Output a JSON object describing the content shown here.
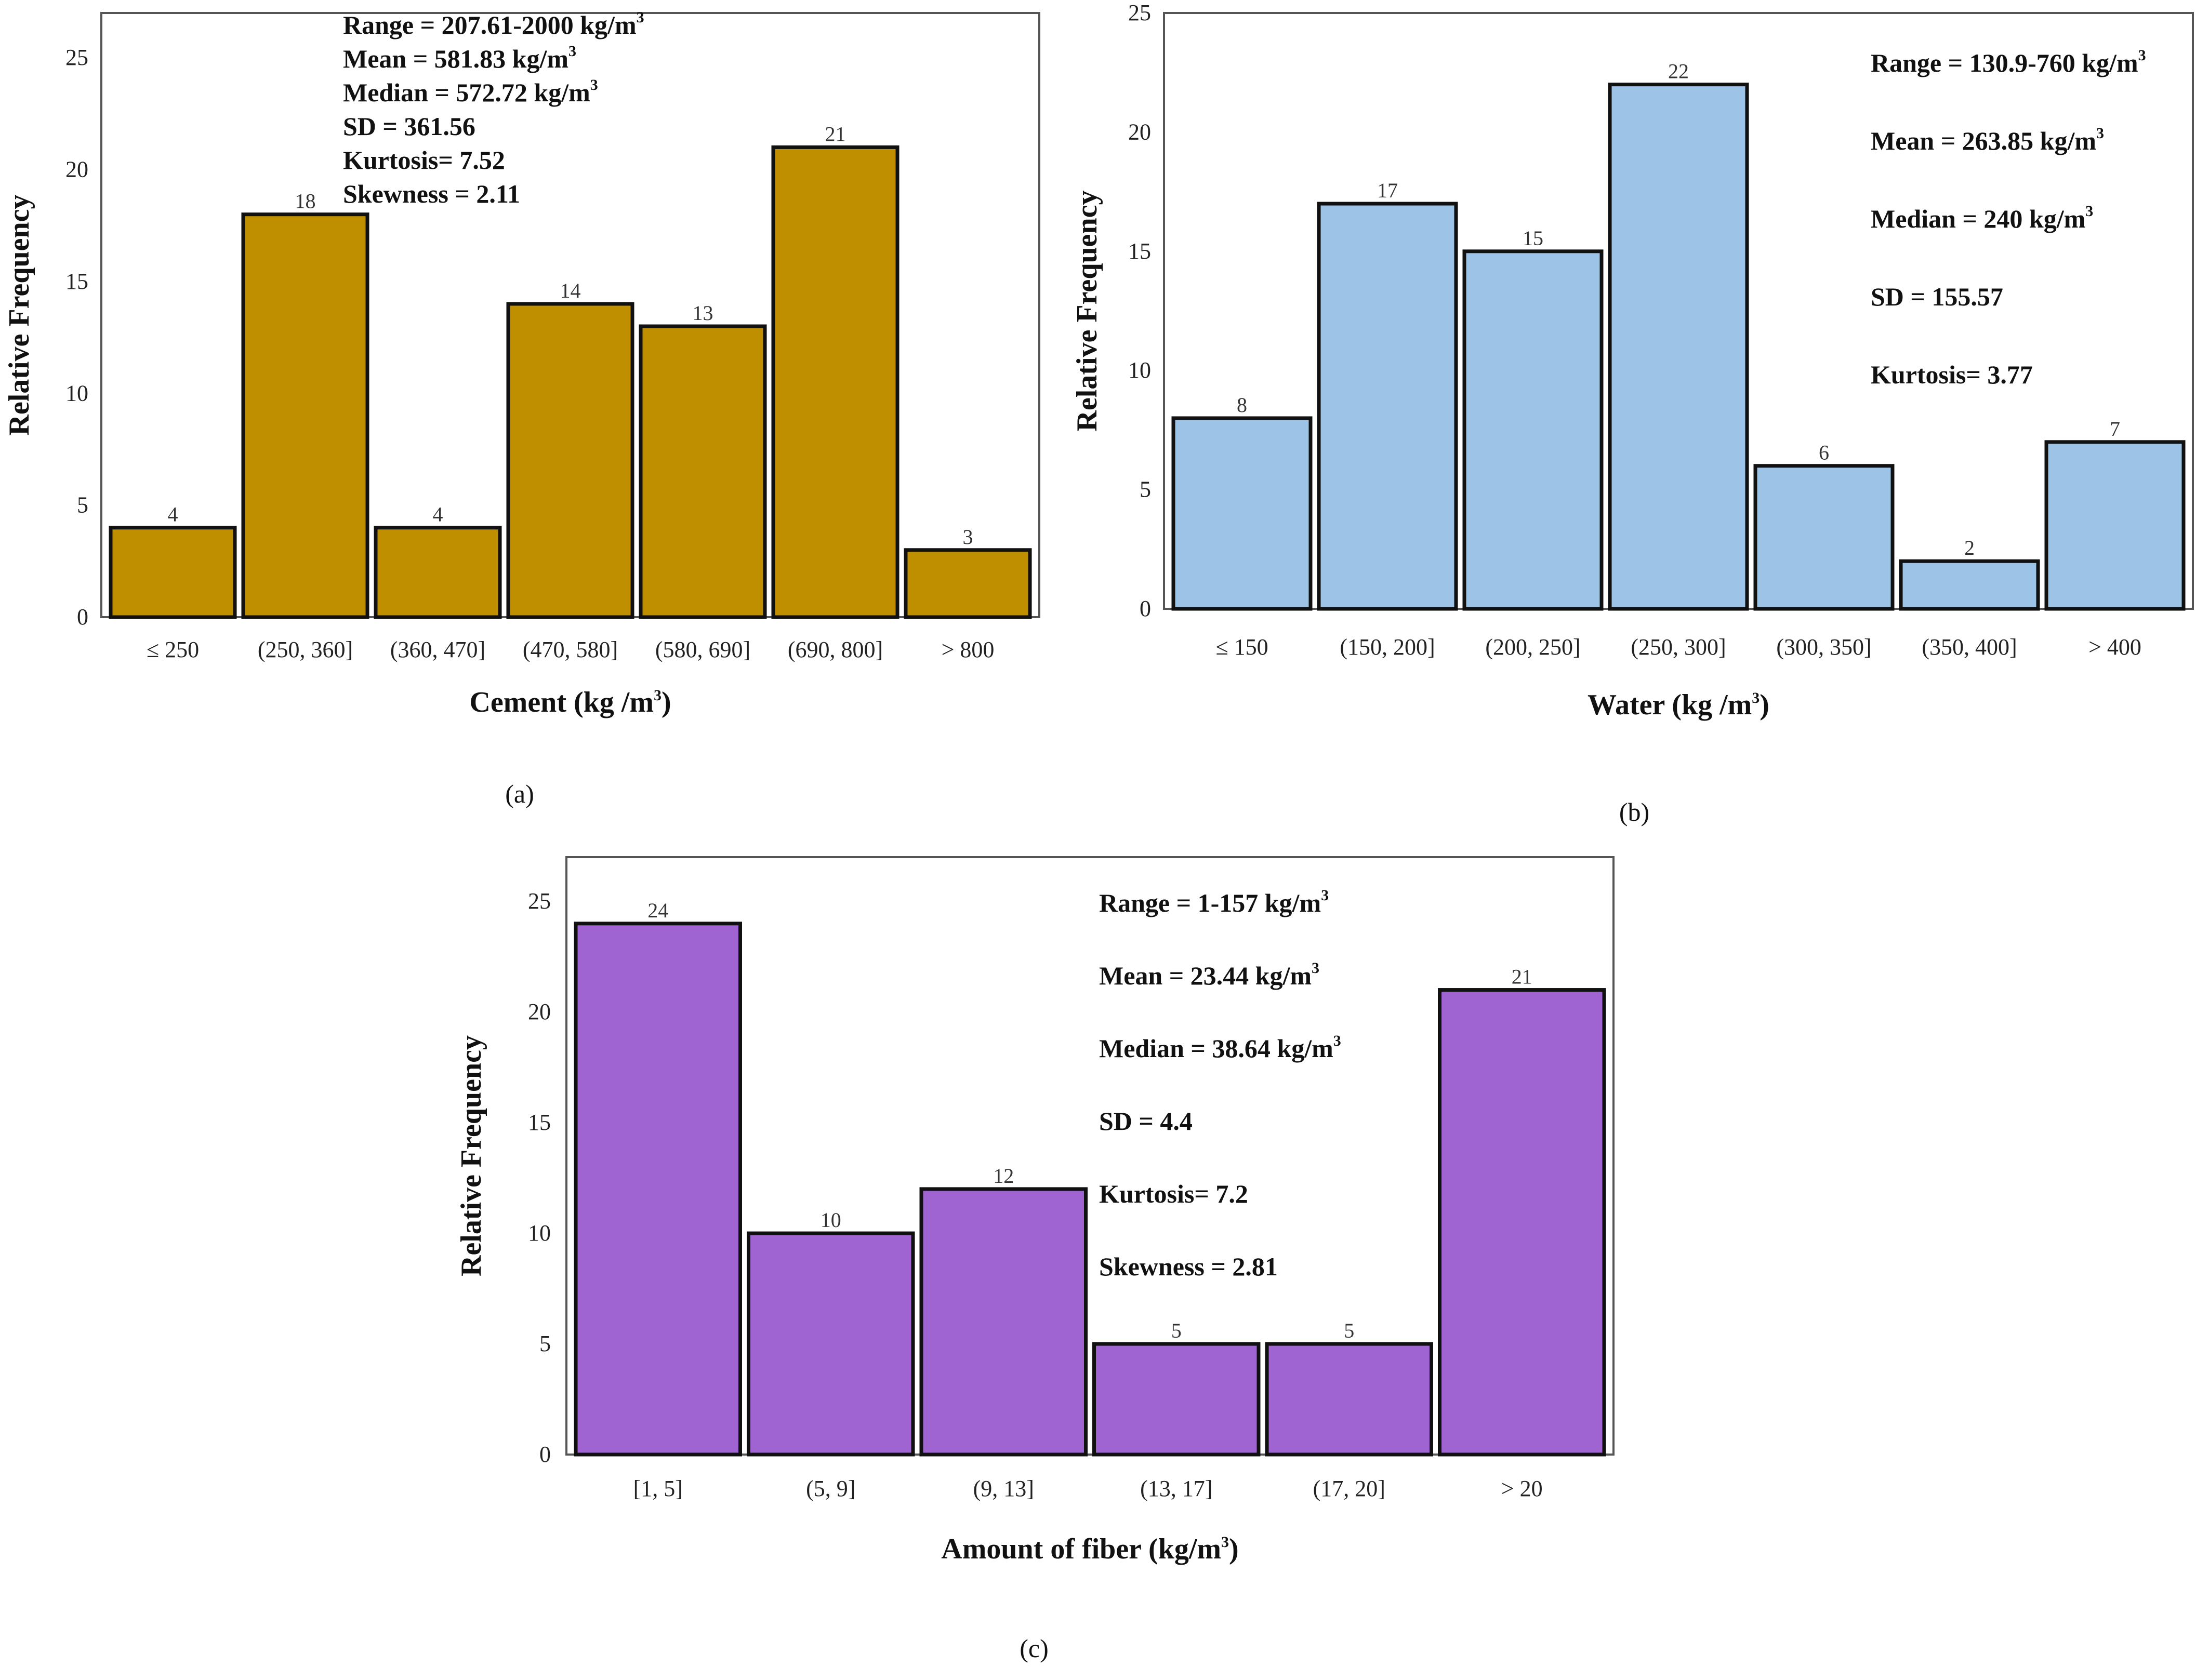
{
  "chart_data": [
    {
      "type": "bar",
      "panel": "(a)",
      "color": "#BF8F00",
      "categories": [
        "≤ 250",
        "(250, 360]",
        "(360, 470]",
        "(470, 580]",
        "(580, 690]",
        "(690, 800]",
        "> 800"
      ],
      "values": [
        4,
        18,
        4,
        14,
        13,
        21,
        3
      ],
      "xlabel": "Cement (kg /m",
      "xlabel_sup": "3",
      "xlabel_end": ")",
      "ylabel": "Relative Frequency",
      "ylim": [
        0,
        27
      ],
      "yticks": [
        0,
        5,
        10,
        15,
        20,
        25
      ],
      "stats": [
        {
          "text": "Range = 207.61-2000 kg/m",
          "sup": "3"
        },
        {
          "text": "Mean = 581.83 kg/m",
          "sup": "3"
        },
        {
          "text": "Median = 572.72 kg/m",
          "sup": "3"
        },
        {
          "text": "SD = 361.56",
          "sup": ""
        },
        {
          "text": "Kurtosis=  7.52",
          "sup": ""
        },
        {
          "text": "Skewness = 2.11",
          "sup": ""
        }
      ]
    },
    {
      "type": "bar",
      "panel": "(b)",
      "color": "#9DC3E6",
      "categories": [
        "≤ 150",
        "(150, 200]",
        "(200, 250]",
        "(250, 300]",
        "(300, 350]",
        "(350, 400]",
        "> 400"
      ],
      "values": [
        8,
        17,
        15,
        22,
        6,
        2,
        7
      ],
      "xlabel": "Water (kg /m",
      "xlabel_sup": "3",
      "xlabel_end": ")",
      "ylabel": "Relative Frequency",
      "ylim": [
        0,
        25
      ],
      "yticks": [
        0,
        5,
        10,
        15,
        20,
        25
      ],
      "stats": [
        {
          "text": "Range = 130.9-760 kg/m",
          "sup": "3"
        },
        {
          "text": "Mean = 263.85 kg/m",
          "sup": "3"
        },
        {
          "text": "Median = 240 kg/m",
          "sup": "3"
        },
        {
          "text": "SD = 155.57",
          "sup": ""
        },
        {
          "text": "Kurtosis=  3.77",
          "sup": ""
        }
      ]
    },
    {
      "type": "bar",
      "panel": "(c)",
      "color": "#A064D2",
      "categories": [
        "[1, 5]",
        "(5, 9]",
        "(9, 13]",
        "(13, 17]",
        "(17, 20]",
        "> 20"
      ],
      "values": [
        24,
        10,
        12,
        5,
        5,
        21
      ],
      "xlabel": "Amount of fiber (kg/m",
      "xlabel_sup": "3",
      "xlabel_end": ")",
      "ylabel": "Relative Frequency",
      "ylim": [
        0,
        27
      ],
      "yticks": [
        0,
        5,
        10,
        15,
        20,
        25
      ],
      "stats": [
        {
          "text": "Range = 1-157 kg/m",
          "sup": "3"
        },
        {
          "text": "Mean = 23.44 kg/m",
          "sup": "3"
        },
        {
          "text": "Median = 38.64 kg/m",
          "sup": "3"
        },
        {
          "text": "SD = 4.4",
          "sup": ""
        },
        {
          "text": "Kurtosis=  7.2",
          "sup": ""
        },
        {
          "text": "Skewness = 2.81",
          "sup": ""
        }
      ]
    }
  ]
}
